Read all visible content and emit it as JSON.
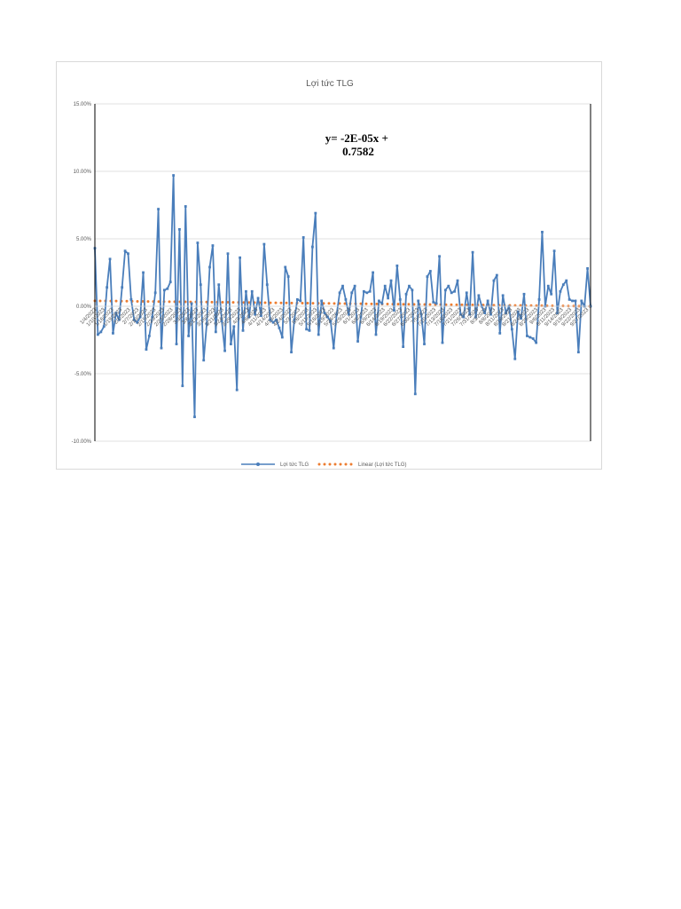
{
  "colors": {
    "series": "#4a7ebb",
    "trend": "#ed7d31",
    "grid": "#d9d9d9",
    "axis": "#000000",
    "text": "#595959"
  },
  "chart_data": {
    "type": "line",
    "title": "Lợi tức TLG",
    "ylim": [
      -0.1,
      0.15
    ],
    "ytick_values": [
      -0.1,
      -0.05,
      0,
      0.05,
      0.1,
      0.15
    ],
    "ytick_labels": [
      "-10.00%",
      "-5.00%",
      "0.00%",
      "5.00%",
      "10.00%",
      "15.00%"
    ],
    "grid": true,
    "legend_position": "bottom",
    "annotation": "y= -2E-05x + 0.7582",
    "annotation_lines": [
      "y= -2E-05x +",
      "0.7582"
    ],
    "x_labels": [
      "1/4/2023",
      "1/10/2023",
      "1/16/2023",
      "1/19/2023",
      "2/1/2023",
      "2/7/2023",
      "2/10/2023",
      "2/15/2023",
      "2/20/2023",
      "2/23/2023",
      "2/28/2023",
      "3/3/2023",
      "3/8/2023",
      "3/13/2023",
      "3/16/2023",
      "3/21/2023",
      "3/24/2023",
      "3/29/2023",
      "4/3/2023",
      "4/6/2023",
      "4/11/2023",
      "4/14/2023",
      "4/19/2023",
      "4/24/2023",
      "5/3/2023",
      "5/8/2023",
      "5/11/2023",
      "5/16/2023",
      "5/19/2023",
      "5/24/2023",
      "5/29/2023",
      "6/1/2023",
      "6/6/2023",
      "6/9/2023",
      "6/14/2023",
      "6/19/2023",
      "6/22/2023",
      "6/27/2023",
      "6/30/2023",
      "7/5/2023",
      "7/10/2023",
      "7/13/2023",
      "7/18/2023",
      "7/21/2023",
      "7/26/2023",
      "7/31/2023",
      "8/3/2023",
      "8/8/2023",
      "8/11/2023",
      "8/16/2023",
      "8/21/2023",
      "8/24/2023",
      "8/29/2023",
      "9/6/2023",
      "9/11/2023",
      "9/14/2023",
      "9/19/2023",
      "9/22/2023",
      "9/27/2023"
    ],
    "series": [
      {
        "name": "Lợi tức TLG",
        "values": [
          0.043,
          -0.021,
          -0.019,
          -0.015,
          0.014,
          0.035,
          -0.02,
          -0.005,
          -0.01,
          0.014,
          0.041,
          0.039,
          0.005,
          -0.01,
          -0.012,
          -0.008,
          0.025,
          -0.032,
          -0.022,
          -0.008,
          0.01,
          0.072,
          -0.031,
          0.012,
          0.013,
          0.018,
          0.097,
          -0.028,
          0.057,
          -0.059,
          0.074,
          -0.022,
          0.002,
          -0.082,
          0.047,
          0.016,
          -0.04,
          -0.013,
          0.029,
          0.045,
          -0.019,
          0.016,
          -0.011,
          -0.033,
          0.039,
          -0.028,
          -0.015,
          -0.062,
          0.036,
          -0.018,
          0.011,
          -0.008,
          0.011,
          -0.006,
          0.006,
          -0.007,
          0.046,
          0.016,
          -0.01,
          -0.012,
          -0.01,
          -0.016,
          -0.023,
          0.029,
          0.022,
          -0.034,
          -0.01,
          0.005,
          0.004,
          0.051,
          -0.017,
          -0.018,
          0.044,
          0.069,
          -0.021,
          0.004,
          -0.005,
          -0.008,
          -0.011,
          -0.031,
          -0.006,
          0.01,
          0.015,
          0.005,
          -0.006,
          0.01,
          0.015,
          -0.026,
          -0.008,
          0.011,
          0.01,
          0.011,
          0.025,
          -0.021,
          0.004,
          0.002,
          0.015,
          0.006,
          0.019,
          -0.003,
          0.03,
          0.005,
          -0.03,
          0.009,
          0.015,
          0.012,
          -0.065,
          0.004,
          -0.006,
          -0.028,
          0.022,
          0.026,
          0.003,
          0.002,
          0.037,
          -0.027,
          0.012,
          0.015,
          0.01,
          0.011,
          0.019,
          -0.006,
          -0.008,
          0.01,
          -0.006,
          0.04,
          -0.008,
          0.008,
          0.0,
          -0.005,
          0.004,
          -0.006,
          0.019,
          0.023,
          -0.02,
          0.008,
          -0.005,
          0.0,
          -0.017,
          -0.039,
          -0.004,
          -0.009,
          0.009,
          -0.022,
          -0.023,
          -0.024,
          -0.027,
          0.005,
          0.055,
          0.0,
          0.015,
          0.009,
          0.041,
          -0.005,
          0.011,
          0.016,
          0.019,
          0.005,
          0.004,
          0.004,
          -0.034,
          0.004,
          0.0,
          0.028,
          0.0
        ]
      },
      {
        "name": "Linear (Lợi tức TLG)",
        "start": 0.004,
        "end": 0.0
      }
    ]
  }
}
